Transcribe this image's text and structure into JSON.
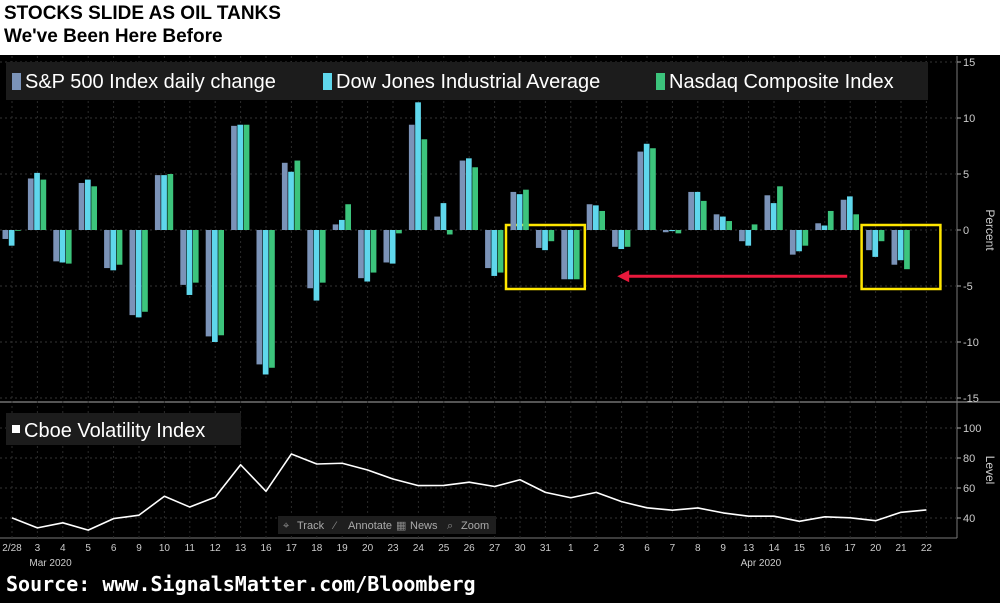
{
  "header": {
    "title": "STOCKS SLIDE AS OIL TANKS",
    "subtitle": "We've Been Here Before"
  },
  "footer": {
    "source": "Source: www.SignalsMatter.com/Bloomberg"
  },
  "colors": {
    "background": "#000000",
    "sp500": "#7b93b8",
    "dow": "#5fd7ec",
    "nasdaq": "#3cc47c",
    "vix_line": "#ffffff",
    "highlight_box": "#ffe600",
    "arrow": "#e8193c",
    "axis_text": "#cccccc"
  },
  "toolbar": [
    {
      "icon": "crosshair-icon",
      "glyph": "⌖",
      "label": "Track"
    },
    {
      "icon": "pencil-icon",
      "glyph": "⁄",
      "label": "Annotate"
    },
    {
      "icon": "newspaper-icon",
      "glyph": "▦",
      "label": "News"
    },
    {
      "icon": "magnifier-icon",
      "glyph": "⌕",
      "label": "Zoom"
    }
  ],
  "chart_data": [
    {
      "type": "bar",
      "axis_label": "Percent",
      "axis_side": "right",
      "ylim": [
        -15,
        15
      ],
      "yticks": [
        15,
        10,
        5,
        0,
        -5,
        -10,
        -15
      ],
      "ytick_labels": [
        "15",
        "10",
        "5",
        "0",
        "-5",
        "-10",
        "-15"
      ],
      "categories": [
        "2/28",
        "3",
        "4",
        "5",
        "6",
        "9",
        "10",
        "11",
        "12",
        "13",
        "16",
        "17",
        "18",
        "19",
        "20",
        "23",
        "24",
        "25",
        "26",
        "27",
        "30",
        "31",
        "1",
        "2",
        "3",
        "6",
        "7",
        "8",
        "9",
        "13",
        "14",
        "15",
        "16",
        "17",
        "20",
        "21",
        "22"
      ],
      "month_labels": [
        {
          "label": "Mar 2020",
          "category_index": 1
        },
        {
          "label": "Apr 2020",
          "category_index": 29
        }
      ],
      "series": [
        {
          "name": "S&P 500 Index daily change",
          "color_key": "sp500",
          "values": [
            -0.8,
            4.6,
            -2.8,
            4.2,
            -3.4,
            -7.6,
            4.9,
            -4.9,
            -9.5,
            9.3,
            -12.0,
            6.0,
            -5.2,
            0.5,
            -4.3,
            -2.9,
            9.4,
            1.2,
            6.2,
            -3.4,
            3.4,
            -1.6,
            -4.4,
            2.3,
            -1.5,
            7.0,
            -0.2,
            3.4,
            1.4,
            -1.0,
            3.1,
            -2.2,
            0.6,
            2.7,
            -1.8,
            -3.1,
            null
          ]
        },
        {
          "name": "Dow Jones Industrial Average",
          "color_key": "dow",
          "values": [
            -1.4,
            5.1,
            -2.9,
            4.5,
            -3.6,
            -7.8,
            4.9,
            -5.8,
            -10.0,
            9.4,
            -12.9,
            5.2,
            -6.3,
            0.9,
            -4.6,
            -3.0,
            11.4,
            2.4,
            6.4,
            -4.1,
            3.2,
            -1.8,
            -4.4,
            2.2,
            -1.7,
            7.7,
            -0.1,
            3.4,
            1.2,
            -1.4,
            2.4,
            -1.9,
            0.4,
            3.0,
            -2.4,
            -2.7,
            null
          ]
        },
        {
          "name": "Nasdaq Composite Index",
          "color_key": "nasdaq",
          "values": [
            0.0,
            4.5,
            -3.0,
            3.9,
            -3.1,
            -7.3,
            5.0,
            -4.7,
            -9.4,
            9.4,
            -12.3,
            6.2,
            -4.7,
            2.3,
            -3.8,
            -0.3,
            8.1,
            -0.4,
            5.6,
            -3.8,
            3.6,
            -1.0,
            -4.4,
            1.7,
            -1.5,
            7.3,
            -0.3,
            2.6,
            0.8,
            0.5,
            3.9,
            -1.4,
            1.7,
            1.4,
            -1.0,
            -3.5,
            null
          ]
        }
      ],
      "legend_position": "top-left",
      "grid": true,
      "annotations": [
        {
          "type": "highlight-box",
          "from_category_index": 20,
          "to_category_index": 22
        },
        {
          "type": "highlight-box",
          "from_category_index": 34,
          "to_category_index": 36
        },
        {
          "type": "arrow",
          "direction": "left",
          "from_category_index": 33,
          "to_category_index": 23,
          "y": -3.5
        }
      ]
    },
    {
      "type": "line",
      "axis_label": "Level",
      "axis_side": "right",
      "ylim": [
        28,
        108
      ],
      "yticks": [
        100,
        80,
        60,
        40
      ],
      "ytick_labels": [
        "100",
        "80",
        "60",
        "40"
      ],
      "series": [
        {
          "name": "Cboe Volatility Index",
          "color_key": "vix_line",
          "values": [
            40.1,
            33.4,
            36.8,
            31.9,
            39.6,
            41.9,
            54.5,
            47.3,
            53.9,
            75.5,
            57.8,
            82.7,
            76.0,
            76.5,
            72.0,
            66.0,
            61.6,
            61.7,
            63.9,
            61.0,
            65.5,
            57.1,
            53.5,
            57.1,
            50.9,
            46.8,
            45.2,
            46.7,
            43.4,
            41.2,
            41.2,
            37.8,
            40.8,
            40.1,
            38.2,
            43.8,
            45.4
          ]
        }
      ],
      "legend_position": "top-left",
      "grid": true
    }
  ]
}
